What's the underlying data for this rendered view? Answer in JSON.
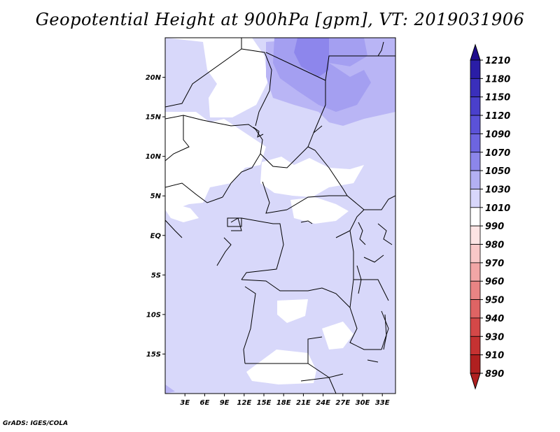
{
  "title": "Geopotential Height at 900hPa [gpm], VT: 2019031906",
  "credit": "GrADS: IGES/COLA",
  "axes": {
    "lat_labels": [
      "20N",
      "15N",
      "10N",
      "5N",
      "EQ",
      "5S",
      "10S",
      "15S"
    ],
    "lat_values": [
      20,
      15,
      10,
      5,
      0,
      -5,
      -10,
      -15
    ],
    "lon_labels": [
      "3E",
      "6E",
      "9E",
      "12E",
      "15E",
      "18E",
      "21E",
      "24E",
      "27E",
      "30E",
      "33E"
    ],
    "lon_values": [
      3,
      6,
      9,
      12,
      15,
      18,
      21,
      24,
      27,
      30,
      33
    ],
    "lon_range": [
      0,
      35
    ],
    "lat_range": [
      -20,
      25
    ]
  },
  "colorbar": {
    "levels": [
      1210,
      1180,
      1150,
      1120,
      1090,
      1070,
      1050,
      1030,
      1010,
      990,
      980,
      970,
      960,
      950,
      940,
      930,
      910,
      890
    ],
    "colors": [
      "#1f0c8c",
      "#2a1da6",
      "#3a2fbb",
      "#4a40cc",
      "#5b52d8",
      "#6d65e0",
      "#8c86ea",
      "#b3b0f3",
      "#d8d7fb",
      "#ffffff",
      "#fde4e4",
      "#f9c8c8",
      "#f2a6a6",
      "#e98484",
      "#df6464",
      "#d44848",
      "#c53232",
      "#b02020"
    ]
  },
  "map_colors": {
    "ocean": "#d8d8fa",
    "level_1030": "#b9b5f5",
    "level_1050": "#a49ff1",
    "level_1070": "#8d86ec",
    "white": "#ffffff",
    "border": "#000000"
  }
}
